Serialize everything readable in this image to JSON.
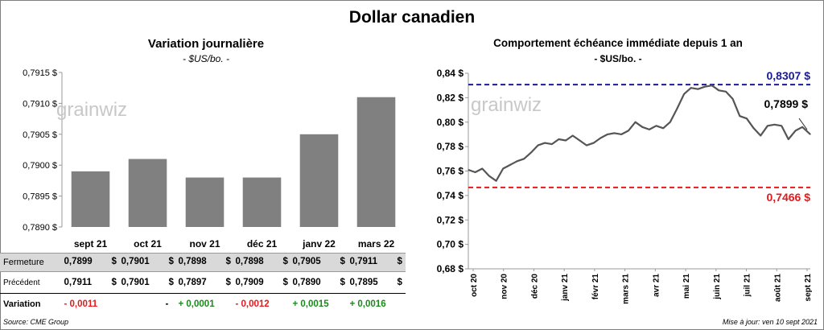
{
  "title": "Dollar canadien",
  "left_chart": {
    "title": "Variation  journalière",
    "subtitle": "- $US/bo. -",
    "watermark": "grainwiz",
    "table": {
      "fermeture_label": "Fermeture",
      "precedent_label": "Précédent",
      "variation_label": "Variation",
      "currency": "$",
      "fermeture": [
        "0,7899",
        "0,7901",
        "0,7898",
        "0,7898",
        "0,7905",
        "0,7911"
      ],
      "precedent": [
        "0,7911",
        "0,7901",
        "0,7897",
        "0,7909",
        "0,7890",
        "0,7895"
      ],
      "variation": [
        "- 0,0011",
        "-",
        "+ 0,0001",
        "- 0,0012",
        "+ 0,0015",
        "+ 0,0016"
      ]
    }
  },
  "right_chart": {
    "title": "Comportement échéance immédiate depuis 1 an",
    "subtitle": "- $US/bo. -",
    "watermark": "grainwiz",
    "high_label": "0,8307 $",
    "low_label": "0,7466  $",
    "last_label": "0,7899 $"
  },
  "chart_data": [
    {
      "type": "bar",
      "categories": [
        "sept 21",
        "oct 21",
        "nov 21",
        "déc 21",
        "janv 22",
        "mars 22"
      ],
      "values": [
        0.7899,
        0.7901,
        0.7898,
        0.7898,
        0.7905,
        0.7911
      ],
      "ylim": [
        0.789,
        0.7915
      ],
      "yticks": [
        0.789,
        0.7895,
        0.79,
        0.7905,
        0.791,
        0.7915
      ],
      "ytick_labels": [
        "0,7890 $",
        "0,7895 $",
        "0,7900 $",
        "0,7905 $",
        "0,7910 $",
        "0,7915 $"
      ],
      "color": "#808080",
      "grid": false
    },
    {
      "type": "line",
      "ylim": [
        0.68,
        0.84
      ],
      "yticks": [
        0.68,
        0.7,
        0.72,
        0.74,
        0.76,
        0.78,
        0.8,
        0.82,
        0.84
      ],
      "ytick_labels": [
        "0,68 $",
        "0,70 $",
        "0,72 $",
        "0,74 $",
        "0,76 $",
        "0,78 $",
        "0,80 $",
        "0,82 $",
        "0,84 $"
      ],
      "xtick_labels": [
        "oct 20",
        "nov 20",
        "déc 20",
        "janv 21",
        "févr 21",
        "mars 21",
        "avr 21",
        "mai 21",
        "juin 21",
        "juil 21",
        "août 21",
        "sept 21"
      ],
      "x_start": "2020-10-01",
      "x_end": "2021-09-10",
      "high": 0.8307,
      "low": 0.7466,
      "last": 0.7899,
      "high_color": "#1a1a99",
      "low_color": "#e41a1c",
      "line_color": "#555555",
      "grid": false,
      "series": [
        {
          "x": [
            "2020-10-01",
            "2020-10-08",
            "2020-10-15",
            "2020-10-22",
            "2020-10-29",
            "2020-11-05",
            "2020-11-12",
            "2020-11-19",
            "2020-11-26",
            "2020-12-03",
            "2020-12-10",
            "2020-12-17",
            "2020-12-24",
            "2020-12-31",
            "2021-01-07",
            "2021-01-14",
            "2021-01-21",
            "2021-01-28",
            "2021-02-04",
            "2021-02-11",
            "2021-02-18",
            "2021-02-25",
            "2021-03-04",
            "2021-03-11",
            "2021-03-18",
            "2021-03-25",
            "2021-04-01",
            "2021-04-08",
            "2021-04-15",
            "2021-04-22",
            "2021-04-29",
            "2021-05-06",
            "2021-05-13",
            "2021-05-20",
            "2021-05-27",
            "2021-06-03",
            "2021-06-10",
            "2021-06-17",
            "2021-06-24",
            "2021-07-01",
            "2021-07-08",
            "2021-07-15",
            "2021-07-22",
            "2021-07-29",
            "2021-08-05",
            "2021-08-12",
            "2021-08-19",
            "2021-08-26",
            "2021-09-02",
            "2021-09-10"
          ],
          "y": [
            0.761,
            0.759,
            0.762,
            0.756,
            0.752,
            0.762,
            0.765,
            0.768,
            0.77,
            0.775,
            0.781,
            0.783,
            0.782,
            0.786,
            0.785,
            0.789,
            0.785,
            0.781,
            0.783,
            0.787,
            0.79,
            0.791,
            0.79,
            0.793,
            0.8,
            0.796,
            0.794,
            0.797,
            0.795,
            0.8,
            0.811,
            0.823,
            0.828,
            0.827,
            0.829,
            0.83,
            0.826,
            0.825,
            0.819,
            0.805,
            0.803,
            0.795,
            0.789,
            0.797,
            0.798,
            0.797,
            0.786,
            0.793,
            0.796,
            0.79
          ]
        }
      ]
    }
  ],
  "footer": {
    "source": "Source: CME Group",
    "updated": "Mise à jour: ven 10 sept 2021"
  }
}
